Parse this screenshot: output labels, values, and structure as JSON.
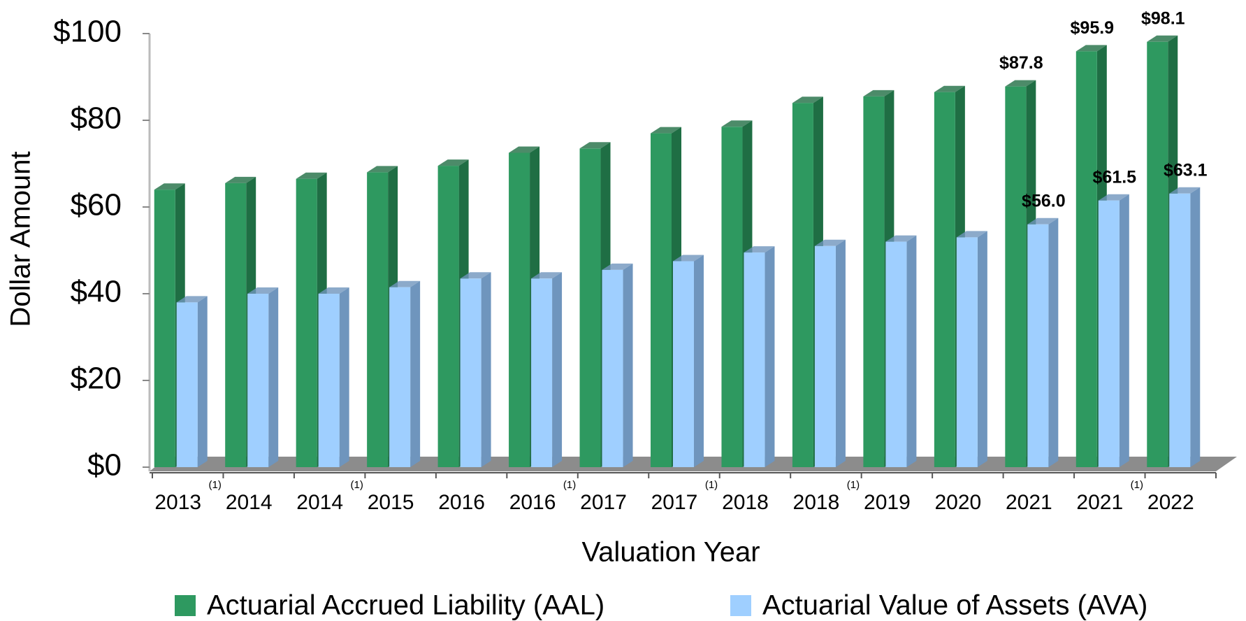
{
  "chart_data": {
    "type": "bar3d",
    "x_label": "Valuation Year",
    "y_label": "Dollar Amount",
    "categories": [
      "2013",
      "2014",
      "2014",
      "2015",
      "2016",
      "2016",
      "2017",
      "2017",
      "2018",
      "2018",
      "2019",
      "2020",
      "2021",
      "2021",
      "2022"
    ],
    "category_notes": [
      "(1)",
      null,
      "(1)",
      null,
      null,
      "(1)",
      null,
      "(1)",
      null,
      "(1)",
      null,
      null,
      null,
      "(1)",
      null
    ],
    "series": [
      {
        "name": "Actuarial Accrued Liability (AAL)",
        "color": "#2e9960",
        "side": "#1f6e44",
        "values": [
          64,
          65.5,
          66.5,
          68,
          69.5,
          72.5,
          73.5,
          77,
          78.5,
          84,
          85.5,
          86.5,
          87.8,
          95.9,
          98.1
        ],
        "value_labels": [
          null,
          null,
          null,
          null,
          null,
          null,
          null,
          null,
          null,
          null,
          null,
          null,
          "$87.8",
          "$95.9",
          "$98.1"
        ]
      },
      {
        "name": "Actuarial Value of Assets (AVA)",
        "color": "#9fcfff",
        "side": "#6f95bd",
        "values": [
          38,
          40,
          40,
          41.5,
          43.5,
          43.5,
          45.5,
          47.5,
          49.5,
          51,
          52,
          53,
          56.0,
          61.5,
          63.1
        ],
        "value_labels": [
          null,
          null,
          null,
          null,
          null,
          null,
          null,
          null,
          null,
          null,
          null,
          null,
          "$56.0",
          "$61.5",
          "$63.1"
        ]
      }
    ],
    "ylim": [
      0,
      100
    ],
    "yticks": [
      {
        "value": 0,
        "label": "$0"
      },
      {
        "value": 20,
        "label": "$20"
      },
      {
        "value": 40,
        "label": "$40"
      },
      {
        "value": 60,
        "label": "$60"
      },
      {
        "value": 80,
        "label": "$80"
      },
      {
        "value": 100,
        "label": "$100"
      }
    ],
    "legend": "bottom"
  }
}
